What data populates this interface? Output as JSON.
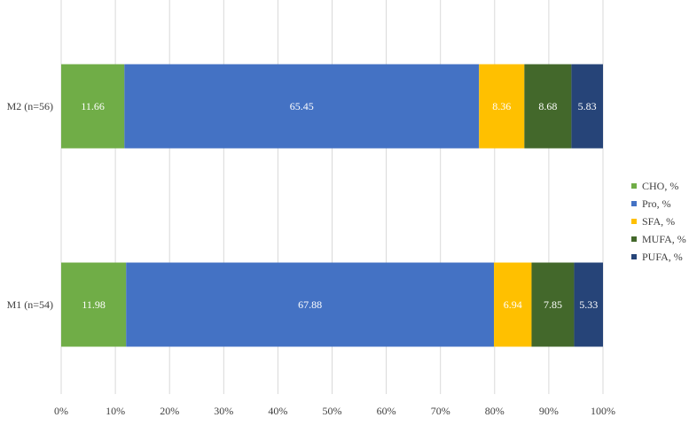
{
  "chart_data": {
    "type": "bar",
    "orientation": "horizontal",
    "stacked": true,
    "percent_axis": true,
    "categories": [
      "M2 (n=56)",
      "M1 (n=54)"
    ],
    "series": [
      {
        "name": "CHO, %",
        "color": "#70ad47",
        "label_color": "#ffffff",
        "values": [
          11.66,
          11.98
        ]
      },
      {
        "name": "Pro, %",
        "color": "#4472c4",
        "label_color": "#ffffff",
        "values": [
          65.45,
          67.88
        ]
      },
      {
        "name": "SFA, %",
        "color": "#ffc000",
        "label_color": "#ffffff",
        "values": [
          8.36,
          6.94
        ]
      },
      {
        "name": "MUFA, %",
        "color": "#43682b",
        "label_color": "#ffffff",
        "values": [
          8.68,
          7.85
        ]
      },
      {
        "name": "PUFA, %",
        "color": "#264478",
        "label_color": "#ffffff",
        "values": [
          5.83,
          5.33
        ]
      }
    ],
    "data_labels": [
      [
        "11.66",
        "65.45",
        "8.36",
        "8.68",
        "5.83"
      ],
      [
        "11.98",
        "67.88",
        "6.94",
        "7.85",
        "5.33"
      ]
    ],
    "x_ticks": [
      "0%",
      "10%",
      "20%",
      "30%",
      "40%",
      "50%",
      "60%",
      "70%",
      "80%",
      "90%",
      "100%"
    ],
    "xlim": [
      0,
      100
    ],
    "grid": true,
    "legend_position": "right",
    "title": "",
    "xlabel": "",
    "ylabel": ""
  }
}
